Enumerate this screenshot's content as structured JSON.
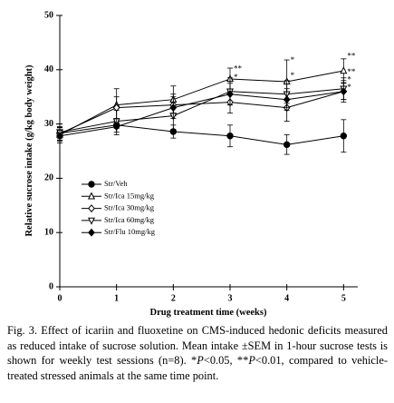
{
  "chart_data": {
    "type": "line",
    "x_label": "Drug treatment time (weeks)",
    "y_label": "Relative sucrose intake (g/kg body weight)",
    "x": [
      0,
      1,
      2,
      3,
      4,
      5
    ],
    "xlim": [
      0,
      5.25
    ],
    "xticks": [
      0,
      1,
      2,
      3,
      4,
      5
    ],
    "ylim": [
      0,
      50
    ],
    "yticks": [
      0,
      10,
      20,
      30,
      40,
      50
    ],
    "color": "#000000",
    "series": [
      {
        "name": "Str/Veh",
        "marker": "circle-filled",
        "values": [
          28.3,
          29.8,
          28.6,
          27.8,
          26.2,
          27.8
        ],
        "errors": [
          1.0,
          0.6,
          1.2,
          2.0,
          1.8,
          3.0
        ]
      },
      {
        "name": "Str/Ica 15mg/kg",
        "marker": "triangle-up-open",
        "values": [
          28.0,
          33.5,
          34.5,
          38.3,
          37.8,
          39.8
        ],
        "errors": [
          1.5,
          3.0,
          2.5,
          2.0,
          4.0,
          2.2
        ]
      },
      {
        "name": "Str/Ica 30mg/kg",
        "marker": "diamond-open",
        "values": [
          28.2,
          33.0,
          33.5,
          34.0,
          33.0,
          36.0
        ],
        "errors": [
          1.2,
          2.0,
          2.0,
          2.0,
          2.5,
          2.0
        ]
      },
      {
        "name": "Str/Ica 60mg/kg",
        "marker": "triangle-down-open",
        "values": [
          28.5,
          30.5,
          31.5,
          36.0,
          35.5,
          36.5
        ],
        "errors": [
          1.5,
          2.0,
          2.5,
          2.5,
          2.5,
          2.0
        ]
      },
      {
        "name": "Str/Flu 10mg/kg",
        "marker": "diamond-filled",
        "values": [
          27.8,
          29.5,
          33.0,
          35.5,
          34.5,
          36.0
        ],
        "errors": [
          1.0,
          1.5,
          2.0,
          2.0,
          2.0,
          1.5
        ]
      }
    ],
    "annotations": [
      {
        "x": 3,
        "y": 40.2,
        "text": "**"
      },
      {
        "x": 3,
        "y": 38.6,
        "text": "*"
      },
      {
        "x": 4,
        "y": 41.8,
        "text": "*"
      },
      {
        "x": 4,
        "y": 39.0,
        "text": "*"
      },
      {
        "x": 5,
        "y": 42.6,
        "text": "**"
      },
      {
        "x": 5,
        "y": 39.6,
        "text": "**"
      },
      {
        "x": 5,
        "y": 38.2,
        "text": "*"
      },
      {
        "x": 5,
        "y": 36.8,
        "text": "*"
      }
    ]
  },
  "caption": [
    "Fig. 3. Effect of icariin and fluoxetine on CMS-induced hedonic deficits measured as reduced intake of sucrose solution. Mean intake ±SEM in 1-hour sucrose tests is shown for weekly test sessions (n=8). *",
    "P",
    "<0.05, **",
    "P",
    "<0.01, compared to vehicle-treated stressed animals at the same time point."
  ]
}
